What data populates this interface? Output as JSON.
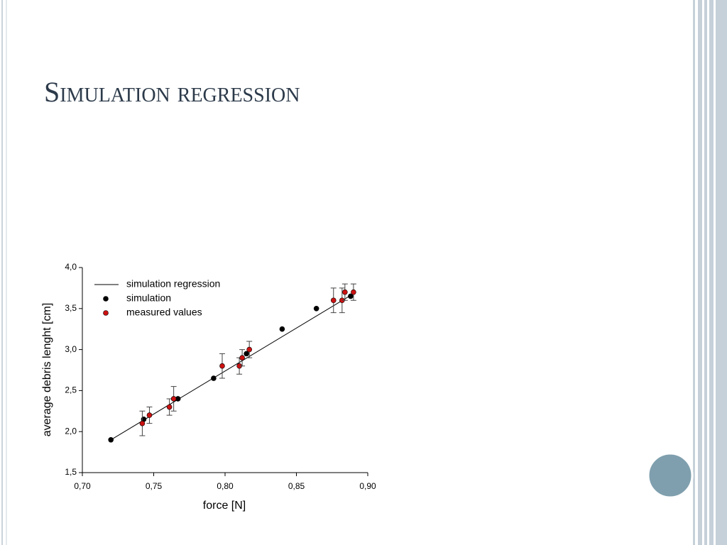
{
  "slide_title": "Simulation regression",
  "chart_data": {
    "type": "scatter",
    "x_label": "force [N]",
    "y_label": "average debris lenght [cm]",
    "xlim": [
      0.7,
      0.9
    ],
    "ylim": [
      1.5,
      4.0
    ],
    "xticks": [
      {
        "value": 0.7,
        "label": "0,70"
      },
      {
        "value": 0.75,
        "label": "0,75"
      },
      {
        "value": 0.8,
        "label": "0,80"
      },
      {
        "value": 0.85,
        "label": "0,85"
      },
      {
        "value": 0.9,
        "label": "0,90"
      }
    ],
    "yticks": [
      {
        "value": 1.5,
        "label": "1,5"
      },
      {
        "value": 2.0,
        "label": "2,0"
      },
      {
        "value": 2.5,
        "label": "2,5"
      },
      {
        "value": 3.0,
        "label": "3,0"
      },
      {
        "value": 3.5,
        "label": "3,5"
      },
      {
        "value": 4.0,
        "label": "4,0"
      }
    ],
    "series": [
      {
        "name": "simulation regression",
        "type": "line",
        "color": "#000000",
        "x": [
          0.72,
          0.888
        ],
        "values": [
          1.9,
          3.66
        ]
      },
      {
        "name": "simulation",
        "type": "marker",
        "color": "#000000",
        "x": [
          0.72,
          0.743,
          0.767,
          0.792,
          0.815,
          0.84,
          0.864,
          0.888
        ],
        "values": [
          1.9,
          2.15,
          2.4,
          2.65,
          2.95,
          3.25,
          3.5,
          3.65
        ]
      },
      {
        "name": "measured values",
        "type": "marker",
        "color": "#cc1111",
        "x": [
          0.742,
          0.747,
          0.761,
          0.764,
          0.798,
          0.81,
          0.812,
          0.817,
          0.876,
          0.882,
          0.884,
          0.89
        ],
        "values": [
          2.1,
          2.2,
          2.3,
          2.4,
          2.8,
          2.8,
          2.9,
          3.0,
          3.6,
          3.6,
          3.7,
          3.7
        ],
        "errors": [
          0.15,
          0.1,
          0.1,
          0.15,
          0.15,
          0.1,
          0.1,
          0.1,
          0.15,
          0.15,
          0.1,
          0.1
        ]
      }
    ]
  }
}
